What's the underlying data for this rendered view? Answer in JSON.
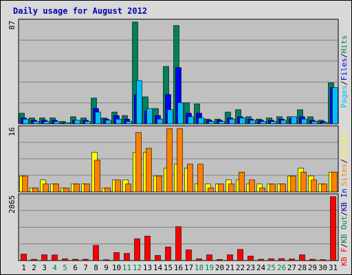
{
  "title": "Daily usage for August 2012",
  "colors": {
    "hits": "#00805c",
    "files": "#0000ff",
    "pages": "#00c0ff",
    "visits": "#ffff00",
    "sites": "#ff8000",
    "kb_in": "#008040",
    "kb_out": "#0000c0",
    "kbf": "#ff0000",
    "weekend_label": "#008040",
    "weekday_label": "#000000"
  },
  "chart_data": [
    {
      "type": "bar",
      "panel": "hits-files-pages",
      "ymax_label": "87",
      "ylim": [
        0,
        87
      ],
      "legend": [
        {
          "label": "Pages",
          "color": "#00c0ff"
        },
        {
          "label": "Files",
          "color": "#0000ff"
        },
        {
          "label": "Hits",
          "color": "#00805c"
        }
      ],
      "categories": [
        "1",
        "2",
        "3",
        "4",
        "5",
        "6",
        "7",
        "8",
        "9",
        "10",
        "11",
        "12",
        "13",
        "14",
        "15",
        "16",
        "17",
        "18",
        "19",
        "20",
        "21",
        "22",
        "23",
        "24",
        "25",
        "26",
        "27",
        "28",
        "29",
        "30",
        "31"
      ],
      "series": [
        {
          "name": "Hits",
          "values": [
            9,
            5,
            5,
            5,
            2,
            6,
            5,
            22,
            5,
            10,
            7,
            87,
            23,
            13,
            49,
            84,
            18,
            17,
            4,
            4,
            10,
            12,
            6,
            4,
            5,
            6,
            6,
            12,
            6,
            3,
            35
          ]
        },
        {
          "name": "Files",
          "values": [
            5,
            3,
            3,
            3,
            1,
            3,
            3,
            13,
            4,
            7,
            4,
            25,
            11,
            7,
            25,
            48,
            9,
            9,
            3,
            3,
            5,
            6,
            4,
            3,
            3,
            4,
            4,
            6,
            3,
            2,
            31
          ]
        },
        {
          "name": "Pages",
          "values": [
            4,
            2,
            2,
            2,
            1,
            3,
            2,
            10,
            3,
            4,
            2,
            37,
            13,
            4,
            12,
            18,
            6,
            5,
            2,
            2,
            4,
            5,
            3,
            2,
            2,
            3,
            6,
            4,
            2,
            1,
            31
          ]
        }
      ]
    },
    {
      "type": "bar",
      "panel": "visits-sites",
      "ymax_label": "16",
      "ylim": [
        0,
        16
      ],
      "legend": [
        {
          "label": "Sites",
          "color": "#ff8000"
        },
        {
          "label": "Visits",
          "color": "#ffff00"
        }
      ],
      "categories": [
        "1",
        "2",
        "3",
        "4",
        "5",
        "6",
        "7",
        "8",
        "9",
        "10",
        "11",
        "12",
        "13",
        "14",
        "15",
        "16",
        "17",
        "18",
        "19",
        "20",
        "21",
        "22",
        "23",
        "24",
        "25",
        "26",
        "27",
        "28",
        "29",
        "30",
        "31"
      ],
      "series": [
        {
          "name": "Visits",
          "values": [
            4,
            1,
            3,
            2,
            1,
            2,
            2,
            10,
            1,
            3,
            3,
            10,
            10,
            4,
            6,
            7,
            6,
            2,
            2,
            2,
            3,
            3,
            2,
            2,
            2,
            2,
            4,
            6,
            4,
            2,
            5
          ]
        },
        {
          "name": "Sites",
          "values": [
            4,
            1,
            2,
            2,
            1,
            2,
            2,
            8,
            1,
            3,
            2,
            15,
            11,
            4,
            16,
            16,
            7,
            7,
            1,
            2,
            2,
            5,
            3,
            1,
            2,
            2,
            4,
            5,
            3,
            2,
            5
          ]
        }
      ]
    },
    {
      "type": "bar",
      "panel": "kb",
      "ymax_label": "2865",
      "ylim": [
        0,
        2865
      ],
      "legend": [
        {
          "label": "KB F",
          "color": "#ff0000"
        },
        {
          "label": "KB Out",
          "color": "#008040"
        },
        {
          "label": "KB In",
          "color": "#0000c0"
        }
      ],
      "categories": [
        "1",
        "2",
        "3",
        "4",
        "5",
        "6",
        "7",
        "8",
        "9",
        "10",
        "11",
        "12",
        "13",
        "14",
        "15",
        "16",
        "17",
        "18",
        "19",
        "20",
        "21",
        "22",
        "23",
        "24",
        "25",
        "26",
        "27",
        "28",
        "29",
        "30",
        "31"
      ],
      "series": [
        {
          "name": "KB F",
          "values": [
            290,
            60,
            260,
            250,
            80,
            60,
            60,
            680,
            40,
            360,
            320,
            980,
            1100,
            230,
            610,
            1520,
            480,
            80,
            260,
            50,
            260,
            500,
            200,
            60,
            80,
            90,
            70,
            260,
            60,
            40,
            2865
          ]
        }
      ]
    }
  ],
  "x_labels": [
    {
      "text": "1",
      "weekend": false
    },
    {
      "text": "2",
      "weekend": false
    },
    {
      "text": "3",
      "weekend": false
    },
    {
      "text": "4",
      "weekend": true
    },
    {
      "text": "5",
      "weekend": true
    },
    {
      "text": "6",
      "weekend": false
    },
    {
      "text": "7",
      "weekend": false
    },
    {
      "text": "8",
      "weekend": false
    },
    {
      "text": "9",
      "weekend": false
    },
    {
      "text": "10",
      "weekend": false
    },
    {
      "text": "11",
      "weekend": true
    },
    {
      "text": "12",
      "weekend": true
    },
    {
      "text": "13",
      "weekend": false
    },
    {
      "text": "14",
      "weekend": false
    },
    {
      "text": "15",
      "weekend": false
    },
    {
      "text": "16",
      "weekend": false
    },
    {
      "text": "17",
      "weekend": false
    },
    {
      "text": "18",
      "weekend": true
    },
    {
      "text": "19",
      "weekend": true
    },
    {
      "text": "20",
      "weekend": false
    },
    {
      "text": "21",
      "weekend": false
    },
    {
      "text": "22",
      "weekend": false
    },
    {
      "text": "23",
      "weekend": false
    },
    {
      "text": "24",
      "weekend": false
    },
    {
      "text": "25",
      "weekend": true
    },
    {
      "text": "26",
      "weekend": true
    },
    {
      "text": "27",
      "weekend": false
    },
    {
      "text": "28",
      "weekend": false
    },
    {
      "text": "29",
      "weekend": false
    },
    {
      "text": "30",
      "weekend": false
    },
    {
      "text": "31",
      "weekend": false
    }
  ]
}
